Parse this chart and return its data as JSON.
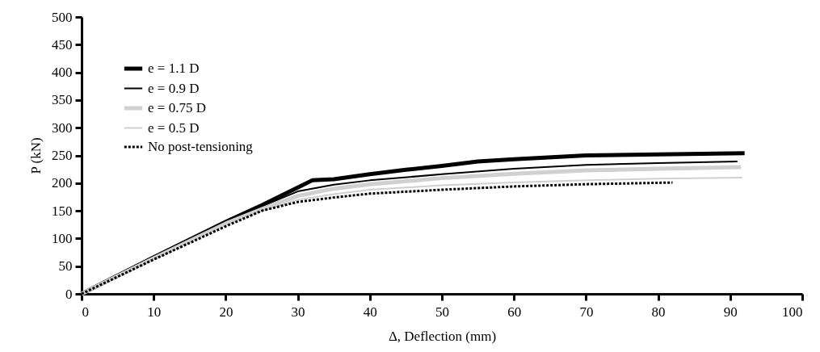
{
  "chart_data": {
    "type": "line",
    "xlabel": "Δ, Deflection (mm)",
    "ylabel": "P (kN)",
    "xlim": [
      0,
      100
    ],
    "xticks": [
      0,
      10,
      20,
      30,
      40,
      50,
      60,
      70,
      80,
      90,
      100
    ],
    "ylim": [
      0,
      500
    ],
    "yticks": [
      0,
      50,
      100,
      150,
      200,
      250,
      300,
      350,
      400,
      450,
      500
    ],
    "grid": false,
    "legend": "top left",
    "marker": "none",
    "series": [
      {
        "name": "e = 1.1 D",
        "color": "#000000",
        "line_style": "solid",
        "x": [
          0,
          10,
          20,
          25,
          30,
          32,
          35,
          40,
          45,
          50,
          55,
          60,
          70,
          80,
          92
        ],
        "values": [
          0,
          66,
          130,
          160,
          192,
          205,
          207,
          216,
          224,
          231,
          239,
          243,
          250,
          252,
          254
        ]
      },
      {
        "name": "e = 0.9 D",
        "color": "#000000",
        "line_style": "solid",
        "x": [
          0,
          10,
          20,
          25,
          30,
          35,
          40,
          50,
          60,
          70,
          80,
          91
        ],
        "values": [
          0,
          66,
          130,
          158,
          185,
          197,
          205,
          216,
          226,
          233,
          236,
          239
        ]
      },
      {
        "name": "e = 0.75 D",
        "color": "#d0d0d0",
        "line_style": "solid",
        "x": [
          0,
          10,
          20,
          25,
          30,
          35,
          40,
          50,
          60,
          70,
          80,
          91.5
        ],
        "values": [
          0,
          64,
          127,
          153,
          177,
          190,
          198,
          209,
          217,
          223,
          226,
          229
        ]
      },
      {
        "name": "e = 0.5 D",
        "color": "#d0d0d0",
        "line_style": "solid",
        "x": [
          0,
          10,
          20,
          25,
          30,
          35,
          40,
          50,
          60,
          70,
          80,
          91.7
        ],
        "values": [
          0,
          63,
          125,
          150,
          170,
          180,
          188,
          196,
          201,
          205,
          208,
          210
        ]
      },
      {
        "name": "No post-tensioning",
        "color": "#000000",
        "line_style": "dashed",
        "x": [
          0,
          10,
          20,
          25,
          30,
          35,
          40,
          50,
          60,
          70,
          82
        ],
        "values": [
          0,
          62,
          122,
          150,
          166,
          174,
          181,
          188,
          194,
          198,
          201
        ]
      }
    ]
  }
}
